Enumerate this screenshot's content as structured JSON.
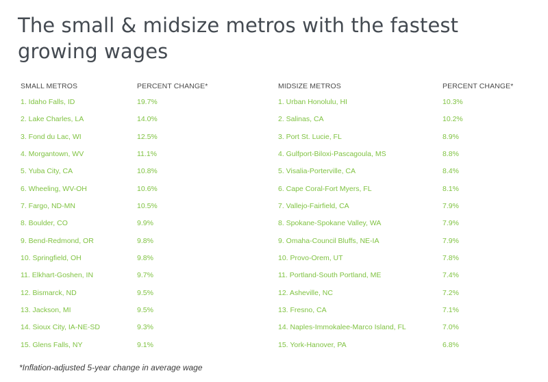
{
  "title": "The small & midsize metros with the fastest growing wages",
  "footnote": "*Inflation-adjusted 5-year change in average wage",
  "colors": {
    "title": "#444a51",
    "header": "#4a4a4a",
    "accent_green": "#7fc241"
  },
  "chart_data": {
    "type": "table",
    "title": "The small & midsize metros with the fastest growing wages",
    "tables": [
      {
        "headers": [
          "SMALL METROS",
          "PERCENT CHANGE*"
        ],
        "rows": [
          [
            "1. Idaho Falls, ID",
            "19.7%"
          ],
          [
            "2. Lake Charles, LA",
            "14.0%"
          ],
          [
            "3. Fond du Lac, WI",
            "12.5%"
          ],
          [
            "4. Morgantown, WV",
            "11.1%"
          ],
          [
            "5. Yuba City, CA",
            "10.8%"
          ],
          [
            "6. Wheeling, WV-OH",
            "10.6%"
          ],
          [
            "7. Fargo, ND-MN",
            "10.5%"
          ],
          [
            "8. Boulder, CO",
            "9.9%"
          ],
          [
            "9. Bend-Redmond, OR",
            "9.8%"
          ],
          [
            "10. Springfield, OH",
            "9.8%"
          ],
          [
            "11. Elkhart-Goshen, IN",
            "9.7%"
          ],
          [
            "12. Bismarck, ND",
            "9.5%"
          ],
          [
            "13. Jackson, MI",
            "9.5%"
          ],
          [
            "14. Sioux City, IA-NE-SD",
            "9.3%"
          ],
          [
            "15. Glens Falls, NY",
            "9.1%"
          ]
        ]
      },
      {
        "headers": [
          "MIDSIZE METROS",
          "PERCENT CHANGE*"
        ],
        "rows": [
          [
            "1. Urban Honolulu, HI",
            "10.3%"
          ],
          [
            "2. Salinas, CA",
            "10.2%"
          ],
          [
            "3. Port St. Lucie, FL",
            "8.9%"
          ],
          [
            "4. Gulfport-Biloxi-Pascagoula, MS",
            "8.8%"
          ],
          [
            "5. Visalia-Porterville, CA",
            "8.4%"
          ],
          [
            "6. Cape Coral-Fort Myers, FL",
            "8.1%"
          ],
          [
            "7. Vallejo-Fairfield, CA",
            "7.9%"
          ],
          [
            "8. Spokane-Spokane Valley, WA",
            "7.9%"
          ],
          [
            "9. Omaha-Council Bluffs, NE-IA",
            "7.9%"
          ],
          [
            "10. Provo-Orem, UT",
            "7.8%"
          ],
          [
            "11. Portland-South Portland, ME",
            "7.4%"
          ],
          [
            "12. Asheville, NC",
            "7.2%"
          ],
          [
            "13. Fresno, CA",
            "7.1%"
          ],
          [
            "14. Naples-Immokalee-Marco Island, FL",
            "7.0%"
          ],
          [
            "15. York-Hanover, PA",
            "6.8%"
          ]
        ]
      }
    ]
  }
}
